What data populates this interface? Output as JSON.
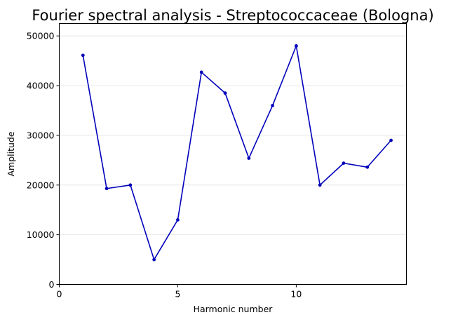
{
  "chart_data": {
    "type": "line",
    "title": "Fourier spectral analysis - Streptococcaceae (Bologna)",
    "xlabel": "Harmonic number",
    "ylabel": "Amplitude",
    "xlim": [
      0,
      14.65
    ],
    "ylim": [
      0,
      52500
    ],
    "xticks": [
      0,
      5,
      10
    ],
    "yticks": [
      0,
      10000,
      20000,
      30000,
      40000,
      50000
    ],
    "xtick_labels": [
      "0",
      "5",
      "10"
    ],
    "ytick_labels": [
      "0",
      "10000",
      "20000",
      "30000",
      "40000",
      "50000"
    ],
    "grid": "horizontal",
    "legend": "none",
    "series": [
      {
        "color": "#0000bb",
        "x": [
          1,
          2,
          3,
          4,
          5,
          6,
          7,
          8,
          9,
          10,
          11,
          12,
          13,
          14
        ],
        "y": [
          46100,
          19300,
          20000,
          5000,
          13000,
          42700,
          38500,
          25400,
          36000,
          48000,
          20000,
          24400,
          23600,
          29000
        ]
      }
    ]
  }
}
